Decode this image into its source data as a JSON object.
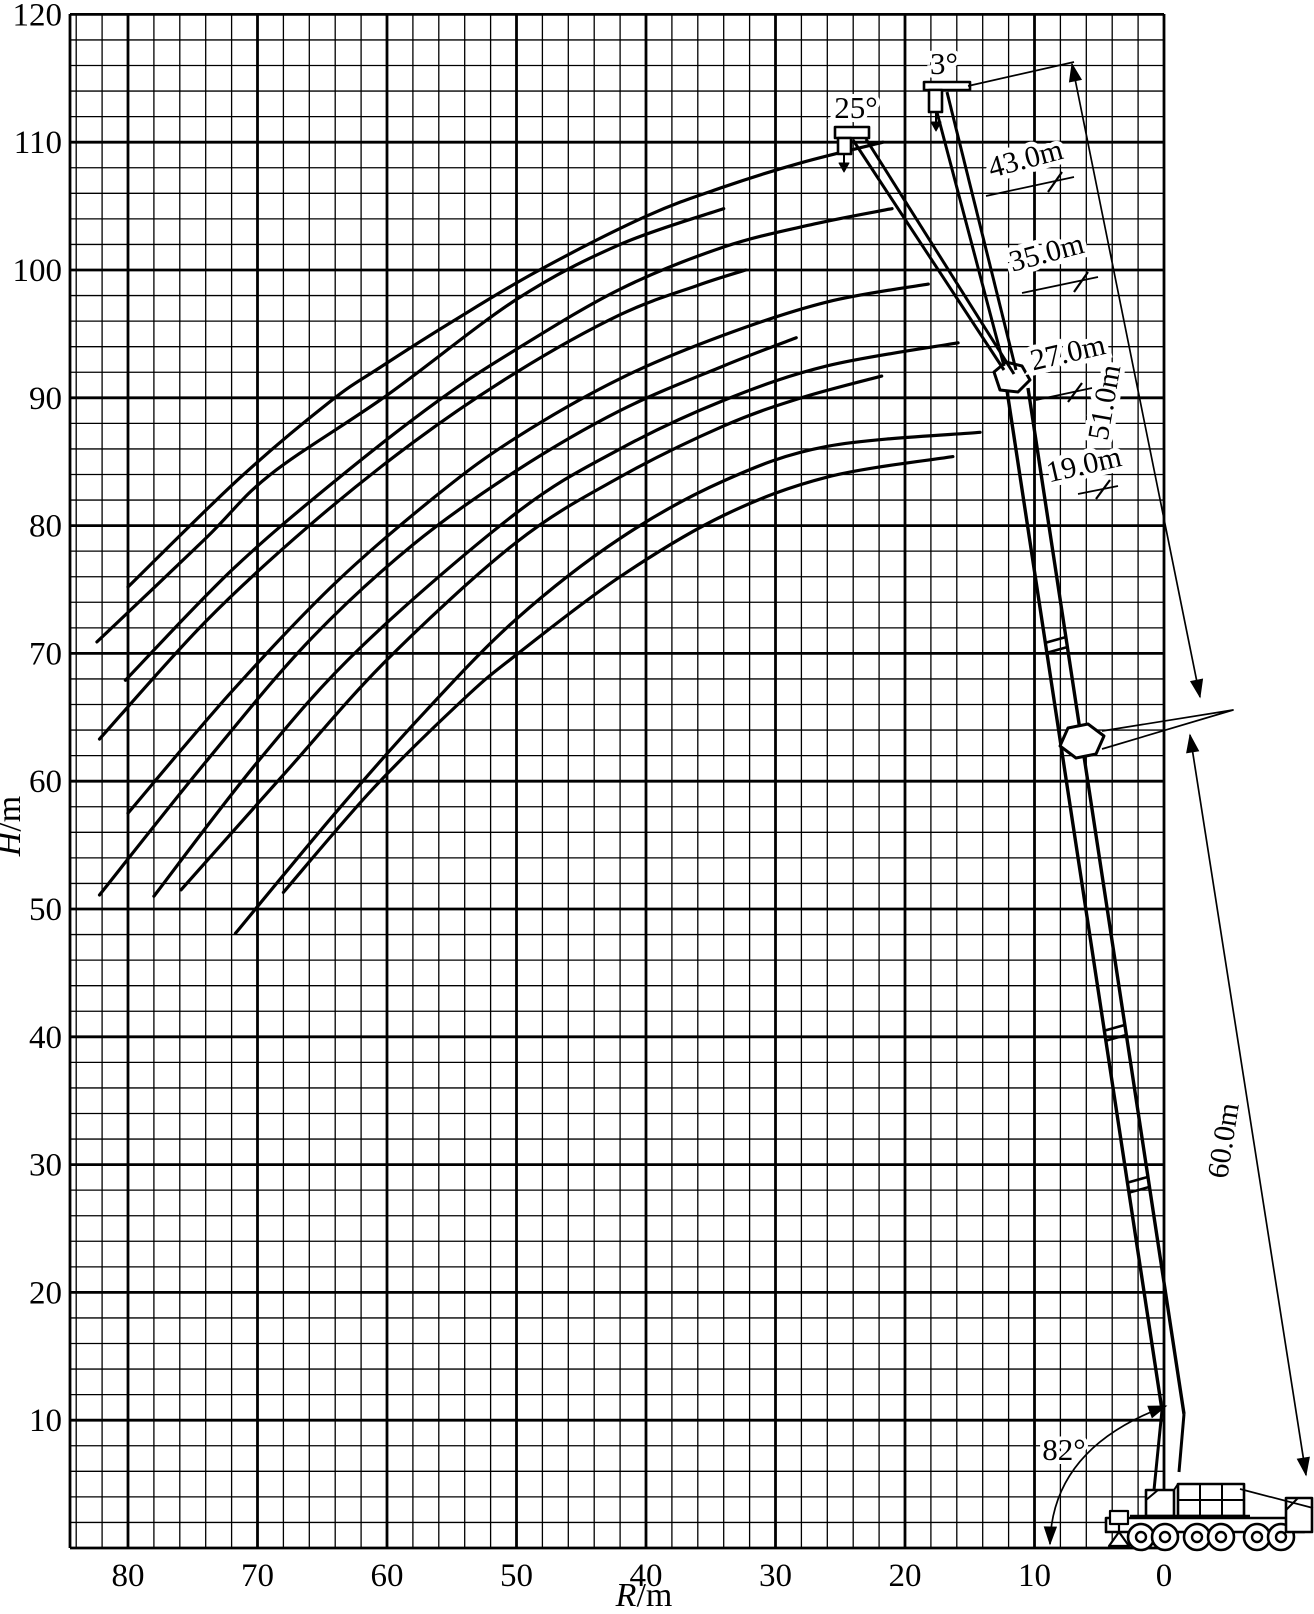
{
  "figure": {
    "y_axis_title": {
      "variable": "H",
      "unit": "/m"
    },
    "x_axis_title": {
      "variable": "R",
      "unit": "/m"
    },
    "y_tick_labels": [
      "120",
      "110",
      "100",
      "90",
      "80",
      "70",
      "60",
      "50",
      "40",
      "30",
      "20",
      "10"
    ],
    "x_tick_labels": [
      "80",
      "70",
      "60",
      "50",
      "40",
      "30",
      "20",
      "10",
      "0"
    ],
    "annotations": {
      "jib_offset_small": "3°",
      "jib_offset_large": "25°",
      "jib_length_43": "43.0m",
      "jib_length_35": "35.0m",
      "jib_length_27": "27.0m",
      "jib_length_19": "19.0m",
      "boom_length_51": "51.0m",
      "boom_length_60": "60.0m",
      "boom_angle": "82°"
    }
  },
  "chart_data": {
    "type": "line",
    "title": "",
    "xlabel": "R/m",
    "ylabel": "H/m",
    "xlim": [
      84.5,
      0
    ],
    "ylim": [
      0,
      120
    ],
    "x_ticks": [
      80,
      70,
      60,
      50,
      40,
      30,
      20,
      10,
      0
    ],
    "y_ticks": [
      120,
      110,
      100,
      90,
      80,
      70,
      60,
      50,
      40,
      30,
      20,
      10
    ],
    "grid": "minor every 2 m, major every 10 m",
    "x_axis_reversed": true,
    "annotations": [
      "3°",
      "25°",
      "43.0m",
      "35.0m",
      "27.0m",
      "19.0m",
      "51.0m",
      "60.0m",
      "82°"
    ],
    "series": [
      {
        "name": "range-curve-1",
        "points": [
          [
            80,
            75.2
          ],
          [
            71.4,
            83.7
          ],
          [
            64.4,
            89.7
          ],
          [
            60.5,
            92.4
          ],
          [
            54.9,
            96.0
          ],
          [
            48.4,
            99.9
          ],
          [
            40,
            104.2
          ],
          [
            34,
            106.5
          ],
          [
            28,
            108.4
          ],
          [
            21.7,
            110
          ]
        ]
      },
      {
        "name": "range-curve-2",
        "points": [
          [
            82.4,
            70.9
          ],
          [
            74,
            79.0
          ],
          [
            69,
            84.0
          ],
          [
            60,
            90.2
          ],
          [
            50,
            97.7
          ],
          [
            42,
            102
          ],
          [
            34,
            104.8
          ]
        ]
      },
      {
        "name": "range-curve-3",
        "points": [
          [
            80.2,
            67.9
          ],
          [
            72,
            76.5
          ],
          [
            64,
            83.5
          ],
          [
            56,
            89.8
          ],
          [
            50,
            93.8
          ],
          [
            42,
            98.5
          ],
          [
            34,
            101.8
          ],
          [
            27,
            103.6
          ],
          [
            21,
            104.8
          ]
        ]
      },
      {
        "name": "range-curve-4",
        "points": [
          [
            82.2,
            63.3
          ],
          [
            74,
            72.5
          ],
          [
            66,
            80.0
          ],
          [
            58,
            86.5
          ],
          [
            50,
            92.0
          ],
          [
            42,
            96.5
          ],
          [
            36,
            98.8
          ],
          [
            32.3,
            100
          ]
        ]
      },
      {
        "name": "range-curve-5",
        "points": [
          [
            80,
            57.5
          ],
          [
            72,
            67.0
          ],
          [
            64,
            75.5
          ],
          [
            56,
            82.5
          ],
          [
            50,
            86.9
          ],
          [
            42,
            91.5
          ],
          [
            34,
            94.9
          ],
          [
            26,
            97.5
          ],
          [
            18.2,
            98.9
          ]
        ]
      },
      {
        "name": "range-curve-6",
        "points": [
          [
            82.2,
            51.1
          ],
          [
            74,
            61.5
          ],
          [
            66,
            71.0
          ],
          [
            58,
            78.5
          ],
          [
            50,
            84.3
          ],
          [
            42,
            89.0
          ],
          [
            34,
            92.5
          ],
          [
            28.4,
            94.7
          ]
        ]
      },
      {
        "name": "range-curve-7",
        "points": [
          [
            78,
            51.0
          ],
          [
            70,
            61.5
          ],
          [
            62,
            70.5
          ],
          [
            50,
            81.0
          ],
          [
            42,
            86.0
          ],
          [
            34,
            89.8
          ],
          [
            26,
            92.5
          ],
          [
            15.9,
            94.3
          ]
        ]
      },
      {
        "name": "range-curve-8",
        "points": [
          [
            75.9,
            51.5
          ],
          [
            68,
            60.5
          ],
          [
            60,
            69.5
          ],
          [
            50,
            78.7
          ],
          [
            42,
            83.8
          ],
          [
            34,
            87.8
          ],
          [
            28,
            90.0
          ],
          [
            21.8,
            91.7
          ]
        ]
      },
      {
        "name": "range-curve-9",
        "points": [
          [
            71.7,
            48.1
          ],
          [
            64,
            57.5
          ],
          [
            57,
            65.5
          ],
          [
            50,
            72.7
          ],
          [
            42,
            79.0
          ],
          [
            34,
            83.5
          ],
          [
            26,
            86.2
          ],
          [
            14.2,
            87.3
          ]
        ]
      },
      {
        "name": "range-curve-10",
        "points": [
          [
            68,
            51.3
          ],
          [
            61,
            59.5
          ],
          [
            54,
            66.5
          ],
          [
            50,
            69.9
          ],
          [
            42,
            76.0
          ],
          [
            34,
            80.8
          ],
          [
            26,
            83.8
          ],
          [
            16.3,
            85.4
          ]
        ]
      }
    ]
  }
}
